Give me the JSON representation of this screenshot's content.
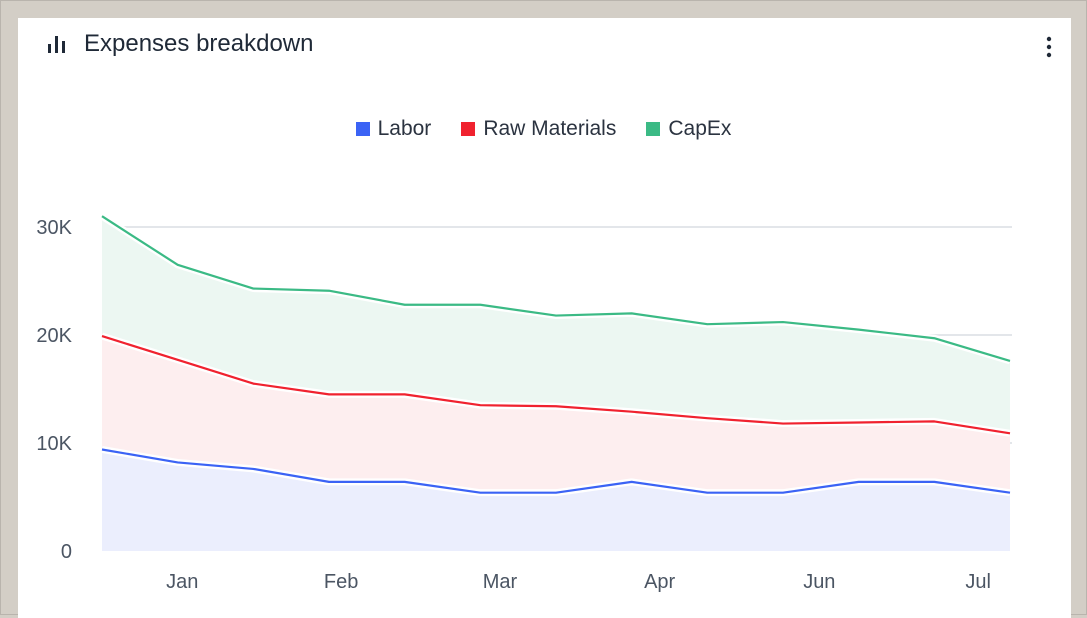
{
  "card": {
    "title": "Expenses breakdown",
    "title_icon": "bar-chart-icon",
    "menu_icon": "more-vertical-icon"
  },
  "chart_data": {
    "type": "area",
    "stacked": true,
    "title": "Expenses breakdown",
    "x": [
      0,
      1,
      2,
      3,
      4,
      5,
      6,
      7,
      8,
      9,
      10,
      11,
      12
    ],
    "x_ticks": [
      {
        "label": "Jan",
        "at": 1.06
      },
      {
        "label": "Feb",
        "at": 3.16
      },
      {
        "label": "Mar",
        "at": 5.26
      },
      {
        "label": "Apr",
        "at": 7.37
      },
      {
        "label": "Jun",
        "at": 9.48
      },
      {
        "label": "Jul",
        "at": 11.58
      }
    ],
    "y_ticks": [
      {
        "label": "0",
        "value": 0
      },
      {
        "label": "10K",
        "value": 10000
      },
      {
        "label": "20K",
        "value": 20000
      },
      {
        "label": "30K",
        "value": 30000
      }
    ],
    "ylim": [
      0,
      31000
    ],
    "grid": true,
    "legend_position": "top-center",
    "series": [
      {
        "name": "Labor",
        "color": "#3b63f5",
        "fill": "#ebeefd",
        "values": [
          9400,
          8200,
          7600,
          6400,
          6400,
          5400,
          5400,
          6400,
          5400,
          5400,
          6400,
          6400,
          5400
        ]
      },
      {
        "name": "Raw Materials",
        "color": "#f0222f",
        "fill": "#fdeeef",
        "values": [
          10500,
          9500,
          7900,
          8100,
          8100,
          8100,
          8000,
          6500,
          6900,
          6400,
          5500,
          5600,
          5500
        ]
      },
      {
        "name": "CapEx",
        "color": "#3bba85",
        "fill": "#ecf7f2",
        "values": [
          11100,
          8800,
          8800,
          9600,
          8300,
          9300,
          8400,
          9100,
          8700,
          9400,
          8600,
          7700,
          6700
        ]
      }
    ]
  }
}
